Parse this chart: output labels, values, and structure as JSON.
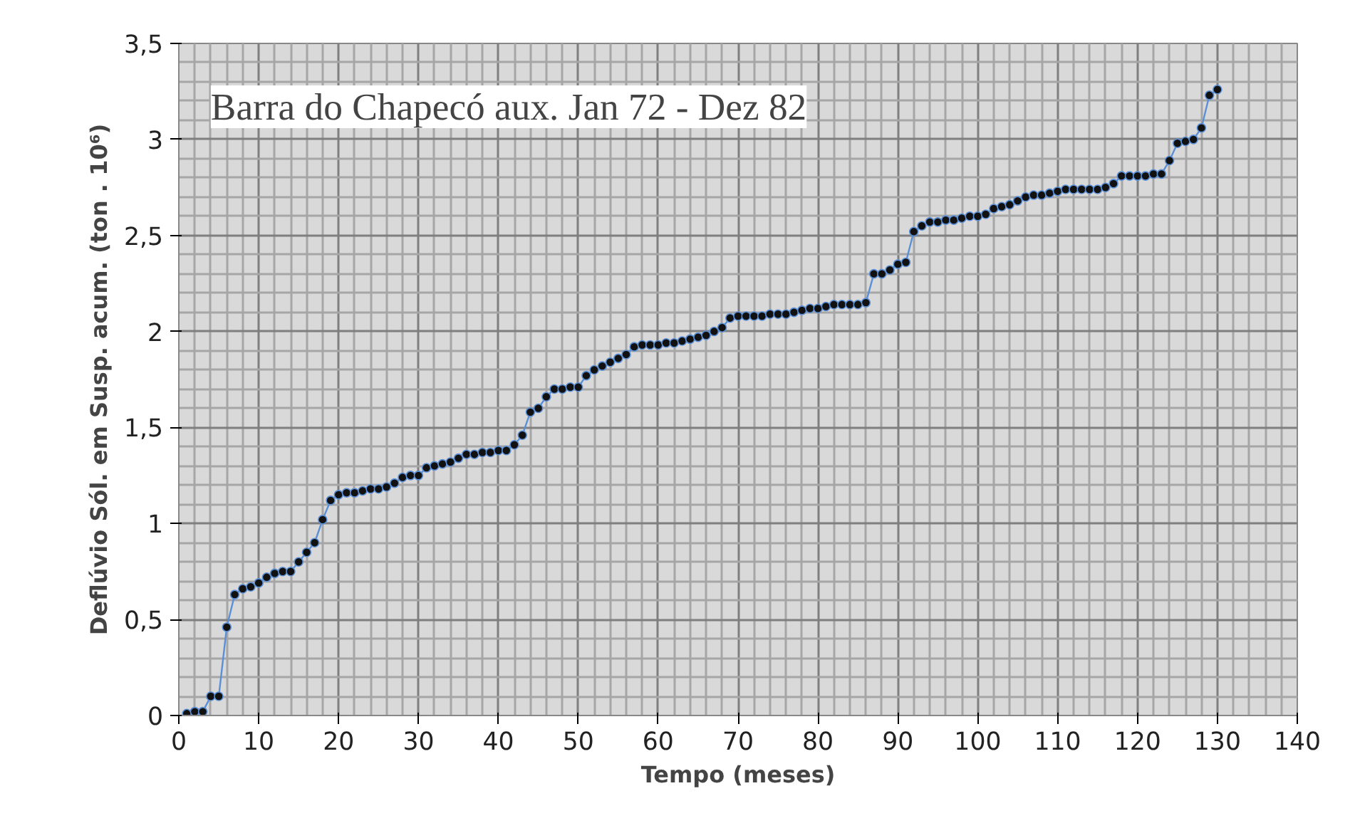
{
  "chart_data": {
    "type": "line",
    "title": "Barra do Chapecó aux. Jan 72 - Dez 82",
    "xlabel": "Tempo (meses)",
    "ylabel": "Deflúvio Sól. em Susp. acum. (ton . 10⁶)",
    "x": [
      1,
      2,
      3,
      4,
      5,
      6,
      7,
      8,
      9,
      10,
      11,
      12,
      13,
      14,
      15,
      16,
      17,
      18,
      19,
      20,
      21,
      22,
      23,
      24,
      25,
      26,
      27,
      28,
      29,
      30,
      31,
      32,
      33,
      34,
      35,
      36,
      37,
      38,
      39,
      40,
      41,
      42,
      43,
      44,
      45,
      46,
      47,
      48,
      49,
      50,
      51,
      52,
      53,
      54,
      55,
      56,
      57,
      58,
      59,
      60,
      61,
      62,
      63,
      64,
      65,
      66,
      67,
      68,
      69,
      70,
      71,
      72,
      73,
      74,
      75,
      76,
      77,
      78,
      79,
      80,
      81,
      82,
      83,
      84,
      85,
      86,
      87,
      88,
      89,
      90,
      91,
      92,
      93,
      94,
      95,
      96,
      97,
      98,
      99,
      100,
      101,
      102,
      103,
      104,
      105,
      106,
      107,
      108,
      109,
      110,
      111,
      112,
      113,
      114,
      115,
      116,
      117,
      118,
      119,
      120,
      121,
      122,
      123,
      124,
      125,
      126,
      127,
      128,
      129,
      130
    ],
    "series": [
      {
        "color": "#5b8fd6",
        "values": [
          0.01,
          0.02,
          0.02,
          0.1,
          0.1,
          0.46,
          0.63,
          0.66,
          0.67,
          0.69,
          0.72,
          0.74,
          0.75,
          0.75,
          0.8,
          0.85,
          0.9,
          1.02,
          1.12,
          1.15,
          1.16,
          1.16,
          1.17,
          1.18,
          1.18,
          1.19,
          1.21,
          1.24,
          1.25,
          1.25,
          1.29,
          1.3,
          1.31,
          1.32,
          1.34,
          1.36,
          1.36,
          1.37,
          1.37,
          1.38,
          1.38,
          1.41,
          1.46,
          1.58,
          1.6,
          1.66,
          1.7,
          1.7,
          1.71,
          1.71,
          1.77,
          1.8,
          1.82,
          1.84,
          1.86,
          1.88,
          1.92,
          1.93,
          1.93,
          1.93,
          1.94,
          1.94,
          1.95,
          1.96,
          1.97,
          1.98,
          2.0,
          2.02,
          2.07,
          2.08,
          2.08,
          2.08,
          2.08,
          2.09,
          2.09,
          2.09,
          2.1,
          2.11,
          2.12,
          2.12,
          2.13,
          2.14,
          2.14,
          2.14,
          2.14,
          2.15,
          2.3,
          2.3,
          2.32,
          2.35,
          2.36,
          2.52,
          2.55,
          2.57,
          2.57,
          2.58,
          2.58,
          2.59,
          2.6,
          2.6,
          2.61,
          2.64,
          2.65,
          2.66,
          2.68,
          2.7,
          2.71,
          2.71,
          2.72,
          2.73,
          2.74,
          2.74,
          2.74,
          2.74,
          2.74,
          2.75,
          2.77,
          2.81,
          2.81,
          2.81,
          2.81,
          2.82,
          2.82,
          2.89,
          2.98,
          2.99,
          3.0,
          3.06,
          3.23,
          3.26
        ]
      }
    ],
    "xlim": [
      0,
      140
    ],
    "xticks": [
      0,
      10,
      20,
      30,
      40,
      50,
      60,
      70,
      80,
      90,
      100,
      110,
      120,
      130,
      140
    ],
    "ylim": [
      0,
      3.5
    ],
    "yticks": [
      0,
      {
        "value": 0.5,
        "label": "0,5"
      },
      1,
      {
        "value": 1.5,
        "label": "1,5"
      },
      2,
      {
        "value": 2.5,
        "label": "2,5"
      },
      3,
      {
        "value": 3.5,
        "label": "3,5"
      }
    ],
    "grid": true,
    "marker": "circle",
    "line_style": "solid"
  }
}
